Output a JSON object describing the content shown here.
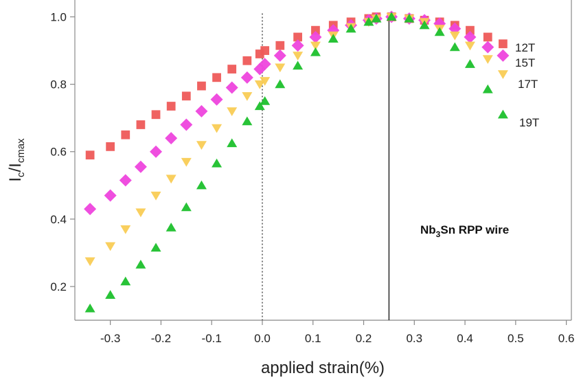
{
  "chart_data": {
    "type": "scatter",
    "xlabel": "applied strain(%)",
    "ylabel_main": "I",
    "ylabel_sub1": "c",
    "ylabel_slash": "/I",
    "ylabel_sub2": "cmax",
    "xlim": [
      -0.37,
      0.61
    ],
    "ylim": [
      0.1,
      1.05
    ],
    "xticks": [
      -0.3,
      -0.2,
      -0.1,
      0.0,
      0.1,
      0.2,
      0.3,
      0.4,
      0.5,
      0.6
    ],
    "xtick_labels": [
      "-0.3",
      "-0.2",
      "-0.1",
      "0.0",
      "0.1",
      "0.2",
      "0.3",
      "0.4",
      "0.5",
      "0.6"
    ],
    "yticks": [
      0.2,
      0.4,
      0.6,
      0.8,
      1.0
    ],
    "ytick_labels": [
      "0.2",
      "0.4",
      "0.6",
      "0.8",
      "1.0"
    ],
    "grid": false,
    "annotation": {
      "text_main": "Nb",
      "text_sub": "3",
      "text_rest": "Sn RPP wire"
    },
    "reference_lines": [
      {
        "x": 0.0,
        "style": "dotted"
      },
      {
        "x": 0.25,
        "style": "solid"
      }
    ],
    "series": [
      {
        "name": "12T",
        "marker": "square",
        "color": "#ee5a58",
        "x": [
          -0.34,
          -0.3,
          -0.27,
          -0.24,
          -0.21,
          -0.18,
          -0.15,
          -0.12,
          -0.09,
          -0.06,
          -0.03,
          -0.005,
          0.005,
          0.035,
          0.07,
          0.105,
          0.14,
          0.175,
          0.21,
          0.225,
          0.255,
          0.29,
          0.32,
          0.35,
          0.38,
          0.41,
          0.445,
          0.475
        ],
        "y": [
          0.59,
          0.615,
          0.65,
          0.68,
          0.71,
          0.735,
          0.765,
          0.795,
          0.82,
          0.845,
          0.87,
          0.89,
          0.9,
          0.915,
          0.94,
          0.96,
          0.975,
          0.985,
          0.995,
          1.0,
          1.0,
          0.995,
          0.99,
          0.985,
          0.975,
          0.96,
          0.94,
          0.92
        ]
      },
      {
        "name": "15T",
        "marker": "diamond",
        "color": "#ee44dd",
        "x": [
          -0.34,
          -0.3,
          -0.27,
          -0.24,
          -0.21,
          -0.18,
          -0.15,
          -0.12,
          -0.09,
          -0.06,
          -0.03,
          -0.005,
          0.005,
          0.035,
          0.07,
          0.105,
          0.14,
          0.175,
          0.21,
          0.225,
          0.255,
          0.29,
          0.32,
          0.35,
          0.38,
          0.41,
          0.445,
          0.475
        ],
        "y": [
          0.43,
          0.47,
          0.515,
          0.555,
          0.6,
          0.64,
          0.68,
          0.72,
          0.755,
          0.79,
          0.82,
          0.845,
          0.86,
          0.885,
          0.915,
          0.94,
          0.96,
          0.975,
          0.99,
          0.995,
          1.0,
          0.995,
          0.99,
          0.98,
          0.965,
          0.94,
          0.91,
          0.885
        ]
      },
      {
        "name": "17T",
        "marker": "triangle-down",
        "color": "#f9cc55",
        "x": [
          -0.34,
          -0.3,
          -0.27,
          -0.24,
          -0.21,
          -0.18,
          -0.15,
          -0.12,
          -0.09,
          -0.06,
          -0.03,
          -0.005,
          0.005,
          0.035,
          0.07,
          0.105,
          0.14,
          0.175,
          0.21,
          0.225,
          0.255,
          0.29,
          0.32,
          0.35,
          0.38,
          0.41,
          0.445,
          0.475
        ],
        "y": [
          0.275,
          0.32,
          0.37,
          0.42,
          0.47,
          0.52,
          0.57,
          0.62,
          0.67,
          0.72,
          0.765,
          0.8,
          0.81,
          0.85,
          0.885,
          0.915,
          0.945,
          0.97,
          0.985,
          0.995,
          1.0,
          0.995,
          0.985,
          0.965,
          0.945,
          0.915,
          0.875,
          0.83
        ]
      },
      {
        "name": "19T",
        "marker": "triangle-up",
        "color": "#1cc02c",
        "x": [
          -0.34,
          -0.3,
          -0.27,
          -0.24,
          -0.21,
          -0.18,
          -0.15,
          -0.12,
          -0.09,
          -0.06,
          -0.03,
          -0.005,
          0.005,
          0.035,
          0.07,
          0.105,
          0.14,
          0.175,
          0.21,
          0.225,
          0.255,
          0.29,
          0.32,
          0.35,
          0.38,
          0.41,
          0.445,
          0.475
        ],
        "y": [
          0.135,
          0.175,
          0.215,
          0.265,
          0.315,
          0.375,
          0.435,
          0.5,
          0.565,
          0.625,
          0.69,
          0.735,
          0.75,
          0.8,
          0.855,
          0.895,
          0.935,
          0.965,
          0.985,
          0.995,
          1.0,
          0.995,
          0.975,
          0.955,
          0.91,
          0.86,
          0.785,
          0.71
        ]
      }
    ]
  }
}
